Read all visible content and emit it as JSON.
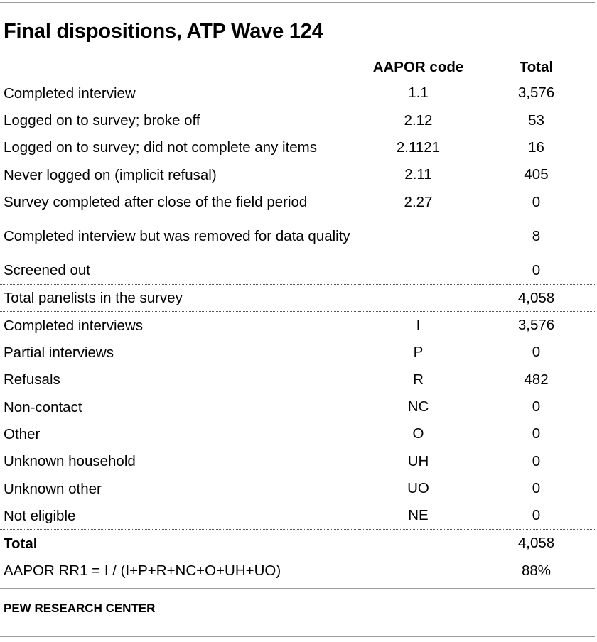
{
  "title": "Final dispositions, ATP Wave 124",
  "headers": {
    "label": "",
    "code": "AAPOR code",
    "total": "Total"
  },
  "rows": [
    {
      "label": "Completed interview",
      "code": "1.1",
      "total": "3,576"
    },
    {
      "label": "Logged on to survey; broke off",
      "code": "2.12",
      "total": "53"
    },
    {
      "label": "Logged on to survey; did not complete any items",
      "code": "2.1121",
      "total": "16"
    },
    {
      "label": "Never logged on (implicit refusal)",
      "code": "2.11",
      "total": "405"
    },
    {
      "label": "Survey completed after close of the field period",
      "code": "2.27",
      "total": "0"
    },
    {
      "label": "Completed interview but was removed for data quality",
      "code": "",
      "total": "8"
    },
    {
      "label": "Screened out",
      "code": "",
      "total": "0"
    },
    {
      "label": "Total panelists in the survey",
      "code": "",
      "total": "4,058"
    },
    {
      "label": "Completed interviews",
      "code": "I",
      "total": "3,576"
    },
    {
      "label": "Partial interviews",
      "code": "P",
      "total": "0"
    },
    {
      "label": "Refusals",
      "code": "R",
      "total": "482"
    },
    {
      "label": "Non-contact",
      "code": "NC",
      "total": "0"
    },
    {
      "label": "Other",
      "code": "O",
      "total": "0"
    },
    {
      "label": "Unknown household",
      "code": "UH",
      "total": "0"
    },
    {
      "label": "Unknown other",
      "code": "UO",
      "total": "0"
    },
    {
      "label": "Not eligible",
      "code": "NE",
      "total": "0"
    },
    {
      "label": "Total",
      "code": "",
      "total": "4,058"
    },
    {
      "label": "AAPOR RR1 = I / (I+P+R+NC+O+UH+UO)",
      "code": "",
      "total": "88%"
    }
  ],
  "source": "PEW RESEARCH CENTER"
}
